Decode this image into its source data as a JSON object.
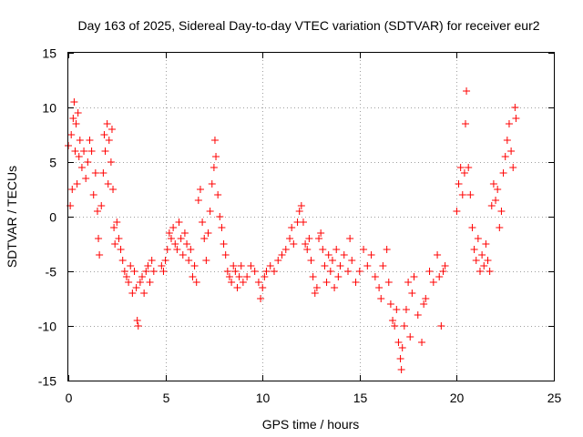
{
  "chart_data": {
    "type": "scatter",
    "title": "Day 163 of 2025, Sidereal Day-to-day VTEC variation (SDTVAR) for receiver eur2",
    "xlabel": "GPS time / hours",
    "ylabel": "SDTVAR / TECUs",
    "xlim": [
      0,
      25
    ],
    "ylim": [
      -15,
      15
    ],
    "xticks": [
      0,
      5,
      10,
      15,
      20,
      25
    ],
    "yticks": [
      -15,
      -10,
      -5,
      0,
      5,
      10,
      15
    ],
    "xtick_labels": [
      "0",
      "5",
      "10",
      "15",
      "20",
      "25"
    ],
    "ytick_labels": [
      "-15",
      "-10",
      "-5",
      "0",
      "5",
      "10",
      "15"
    ],
    "grid": true,
    "marker": "+",
    "series": [
      {
        "name": "SDTVAR",
        "color": "#ff0000",
        "points": [
          [
            0.0,
            6.5
          ],
          [
            0.1,
            1.0
          ],
          [
            0.15,
            7.5
          ],
          [
            0.2,
            2.5
          ],
          [
            0.25,
            9.0
          ],
          [
            0.3,
            10.5
          ],
          [
            0.35,
            6.0
          ],
          [
            0.4,
            8.5
          ],
          [
            0.45,
            3.0
          ],
          [
            0.5,
            9.5
          ],
          [
            0.55,
            5.5
          ],
          [
            0.6,
            7.0
          ],
          [
            0.7,
            4.5
          ],
          [
            0.8,
            6.0
          ],
          [
            0.9,
            3.5
          ],
          [
            1.0,
            5.0
          ],
          [
            1.1,
            7.0
          ],
          [
            1.2,
            6.0
          ],
          [
            1.3,
            2.0
          ],
          [
            1.4,
            4.0
          ],
          [
            1.5,
            0.5
          ],
          [
            1.55,
            -2.0
          ],
          [
            1.6,
            -3.5
          ],
          [
            1.7,
            1.0
          ],
          [
            1.8,
            4.0
          ],
          [
            1.85,
            7.5
          ],
          [
            1.9,
            6.0
          ],
          [
            2.0,
            8.5
          ],
          [
            2.05,
            3.0
          ],
          [
            2.1,
            7.0
          ],
          [
            2.2,
            5.0
          ],
          [
            2.25,
            8.0
          ],
          [
            2.3,
            2.5
          ],
          [
            2.35,
            -1.0
          ],
          [
            2.4,
            -2.5
          ],
          [
            2.5,
            -0.5
          ],
          [
            2.6,
            -2.0
          ],
          [
            2.7,
            -3.0
          ],
          [
            2.8,
            -4.0
          ],
          [
            2.9,
            -5.0
          ],
          [
            3.0,
            -5.5
          ],
          [
            3.1,
            -6.0
          ],
          [
            3.2,
            -4.5
          ],
          [
            3.3,
            -7.0
          ],
          [
            3.4,
            -5.0
          ],
          [
            3.5,
            -6.5
          ],
          [
            3.55,
            -9.5
          ],
          [
            3.6,
            -10.0
          ],
          [
            3.7,
            -6.0
          ],
          [
            3.8,
            -5.5
          ],
          [
            3.9,
            -7.0
          ],
          [
            4.0,
            -5.0
          ],
          [
            4.1,
            -4.5
          ],
          [
            4.2,
            -6.0
          ],
          [
            4.3,
            -4.0
          ],
          [
            4.4,
            -5.0
          ],
          [
            4.8,
            -4.5
          ],
          [
            4.9,
            -5.0
          ],
          [
            5.0,
            -4.0
          ],
          [
            5.1,
            -3.0
          ],
          [
            5.2,
            -1.5
          ],
          [
            5.3,
            -2.0
          ],
          [
            5.4,
            -1.0
          ],
          [
            5.5,
            -2.5
          ],
          [
            5.6,
            -3.0
          ],
          [
            5.7,
            -0.5
          ],
          [
            5.8,
            -2.0
          ],
          [
            5.9,
            -3.5
          ],
          [
            6.0,
            -1.5
          ],
          [
            6.1,
            -2.5
          ],
          [
            6.2,
            -4.0
          ],
          [
            6.3,
            -3.0
          ],
          [
            6.4,
            -5.5
          ],
          [
            6.5,
            -4.5
          ],
          [
            6.6,
            -6.0
          ],
          [
            6.7,
            1.5
          ],
          [
            6.8,
            2.5
          ],
          [
            6.9,
            -0.5
          ],
          [
            7.0,
            -2.0
          ],
          [
            7.1,
            -4.0
          ],
          [
            7.2,
            -1.5
          ],
          [
            7.3,
            0.5
          ],
          [
            7.4,
            3.0
          ],
          [
            7.5,
            4.5
          ],
          [
            7.55,
            7.0
          ],
          [
            7.6,
            5.5
          ],
          [
            7.7,
            2.0
          ],
          [
            7.8,
            0.0
          ],
          [
            7.9,
            -1.0
          ],
          [
            8.0,
            -2.5
          ],
          [
            8.1,
            -3.5
          ],
          [
            8.2,
            -5.0
          ],
          [
            8.3,
            -5.5
          ],
          [
            8.4,
            -6.0
          ],
          [
            8.5,
            -4.5
          ],
          [
            8.6,
            -5.0
          ],
          [
            8.7,
            -6.5
          ],
          [
            8.8,
            -5.5
          ],
          [
            8.9,
            -4.5
          ],
          [
            9.0,
            -6.0
          ],
          [
            9.2,
            -5.5
          ],
          [
            9.4,
            -4.5
          ],
          [
            9.6,
            -5.0
          ],
          [
            9.8,
            -6.0
          ],
          [
            9.9,
            -7.5
          ],
          [
            10.0,
            -6.5
          ],
          [
            10.1,
            -5.5
          ],
          [
            10.2,
            -5.0
          ],
          [
            10.4,
            -4.5
          ],
          [
            10.6,
            -5.0
          ],
          [
            10.8,
            -4.0
          ],
          [
            11.0,
            -3.5
          ],
          [
            11.2,
            -3.0
          ],
          [
            11.4,
            -2.0
          ],
          [
            11.5,
            -1.0
          ],
          [
            11.6,
            -2.5
          ],
          [
            11.8,
            -0.5
          ],
          [
            11.9,
            0.5
          ],
          [
            12.0,
            1.0
          ],
          [
            12.1,
            -0.5
          ],
          [
            12.2,
            -2.5
          ],
          [
            12.3,
            -3.0
          ],
          [
            12.4,
            -2.0
          ],
          [
            12.5,
            -4.0
          ],
          [
            12.6,
            -5.5
          ],
          [
            12.7,
            -7.0
          ],
          [
            12.8,
            -6.5
          ],
          [
            12.9,
            -2.0
          ],
          [
            13.0,
            -1.5
          ],
          [
            13.1,
            -3.0
          ],
          [
            13.2,
            -4.5
          ],
          [
            13.3,
            -6.0
          ],
          [
            13.4,
            -3.5
          ],
          [
            13.5,
            -5.0
          ],
          [
            13.6,
            -4.0
          ],
          [
            13.7,
            -6.5
          ],
          [
            13.8,
            -3.0
          ],
          [
            13.9,
            -5.5
          ],
          [
            14.0,
            -4.5
          ],
          [
            14.2,
            -3.5
          ],
          [
            14.4,
            -5.0
          ],
          [
            14.5,
            -2.0
          ],
          [
            14.6,
            -4.0
          ],
          [
            14.8,
            -6.0
          ],
          [
            15.0,
            -5.0
          ],
          [
            15.2,
            -3.0
          ],
          [
            15.4,
            -4.5
          ],
          [
            15.6,
            -3.5
          ],
          [
            15.8,
            -5.5
          ],
          [
            16.0,
            -6.5
          ],
          [
            16.1,
            -7.5
          ],
          [
            16.2,
            -4.5
          ],
          [
            16.4,
            -3.0
          ],
          [
            16.5,
            -6.0
          ],
          [
            16.6,
            -8.0
          ],
          [
            16.7,
            -9.5
          ],
          [
            16.8,
            -10.0
          ],
          [
            16.9,
            -8.5
          ],
          [
            17.0,
            -11.5
          ],
          [
            17.1,
            -13.0
          ],
          [
            17.15,
            -14.0
          ],
          [
            17.2,
            -12.0
          ],
          [
            17.3,
            -10.0
          ],
          [
            17.4,
            -8.5
          ],
          [
            17.5,
            -6.0
          ],
          [
            17.6,
            -11.0
          ],
          [
            17.7,
            -7.0
          ],
          [
            17.8,
            -5.5
          ],
          [
            18.0,
            -9.0
          ],
          [
            18.2,
            -11.5
          ],
          [
            18.3,
            -8.0
          ],
          [
            18.4,
            -7.5
          ],
          [
            18.6,
            -5.0
          ],
          [
            18.8,
            -6.0
          ],
          [
            19.0,
            -3.5
          ],
          [
            19.1,
            -5.5
          ],
          [
            19.2,
            -10.0
          ],
          [
            19.3,
            -5.0
          ],
          [
            19.4,
            -4.5
          ],
          [
            20.0,
            0.5
          ],
          [
            20.1,
            3.0
          ],
          [
            20.2,
            4.5
          ],
          [
            20.3,
            2.0
          ],
          [
            20.4,
            4.0
          ],
          [
            20.45,
            8.5
          ],
          [
            20.5,
            11.5
          ],
          [
            20.6,
            4.5
          ],
          [
            20.7,
            2.0
          ],
          [
            20.8,
            -1.0
          ],
          [
            20.9,
            -3.0
          ],
          [
            21.0,
            -4.0
          ],
          [
            21.1,
            -2.0
          ],
          [
            21.2,
            -5.0
          ],
          [
            21.3,
            -3.5
          ],
          [
            21.4,
            -4.5
          ],
          [
            21.5,
            -2.5
          ],
          [
            21.6,
            -4.0
          ],
          [
            21.7,
            -5.0
          ],
          [
            21.8,
            1.0
          ],
          [
            21.9,
            3.0
          ],
          [
            22.0,
            1.5
          ],
          [
            22.1,
            2.5
          ],
          [
            22.2,
            -1.0
          ],
          [
            22.3,
            0.5
          ],
          [
            22.4,
            4.0
          ],
          [
            22.5,
            5.5
          ],
          [
            22.6,
            7.0
          ],
          [
            22.7,
            8.5
          ],
          [
            22.8,
            6.0
          ],
          [
            22.9,
            4.5
          ],
          [
            23.0,
            10.0
          ],
          [
            23.05,
            9.0
          ]
        ]
      }
    ]
  }
}
